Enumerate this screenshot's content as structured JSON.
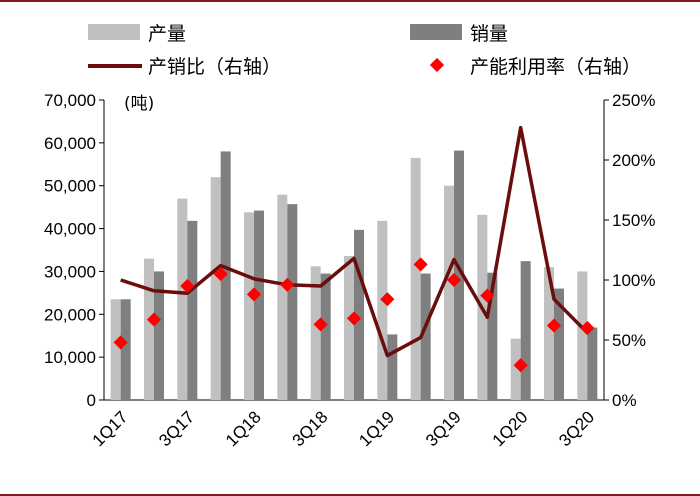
{
  "chart_data": {
    "type": "bar",
    "title": "",
    "unit_label": "(吨)",
    "categories": [
      "1Q17",
      "2Q17",
      "3Q17",
      "4Q17",
      "1Q18",
      "2Q18",
      "3Q18",
      "4Q18",
      "1Q19",
      "2Q19",
      "3Q19",
      "4Q19",
      "1Q20",
      "2Q20",
      "3Q20"
    ],
    "x_tick_labels": [
      "1Q17",
      "3Q17",
      "1Q18",
      "3Q18",
      "1Q19",
      "3Q19",
      "1Q20",
      "3Q20"
    ],
    "left_axis": {
      "ylim": [
        0,
        70000
      ],
      "ticks": [
        "0",
        "10,000",
        "20,000",
        "30,000",
        "40,000",
        "50,000",
        "60,000",
        "70,000"
      ]
    },
    "right_axis": {
      "ylim": [
        0,
        2.5
      ],
      "ticks": [
        "0%",
        "50%",
        "100%",
        "150%",
        "200%",
        "250%"
      ]
    },
    "series": [
      {
        "name": "产量",
        "type": "bar",
        "axis": "left",
        "color": "#c0c0c0",
        "values": [
          23500,
          33000,
          47000,
          52000,
          43800,
          47900,
          31200,
          33600,
          41800,
          56500,
          50000,
          43200,
          14300,
          31000,
          30000
        ]
      },
      {
        "name": "销量",
        "type": "bar",
        "axis": "left",
        "color": "#7f7f7f",
        "values": [
          23500,
          30000,
          41800,
          58000,
          44200,
          45700,
          29500,
          39700,
          15300,
          29500,
          58200,
          29700,
          32400,
          26000,
          16900
        ]
      },
      {
        "name": "产销比（右轴）",
        "type": "line",
        "axis": "right",
        "color": "#6b0d0d",
        "values": [
          1.0,
          0.91,
          0.89,
          1.12,
          1.01,
          0.96,
          0.95,
          1.18,
          0.37,
          0.52,
          1.17,
          0.69,
          2.27,
          0.84,
          0.56
        ]
      },
      {
        "name": "产能利用率（右轴）",
        "type": "scatter",
        "axis": "right",
        "color": "#ff0000",
        "values": [
          0.48,
          0.67,
          0.95,
          1.05,
          0.88,
          0.96,
          0.63,
          0.68,
          0.84,
          1.13,
          1.0,
          0.87,
          0.29,
          0.62,
          0.6
        ]
      }
    ],
    "legend": [
      "产量",
      "销量",
      "产销比（右轴）",
      "产能利用率（右轴）"
    ],
    "legend_position": "top",
    "grid": false
  }
}
